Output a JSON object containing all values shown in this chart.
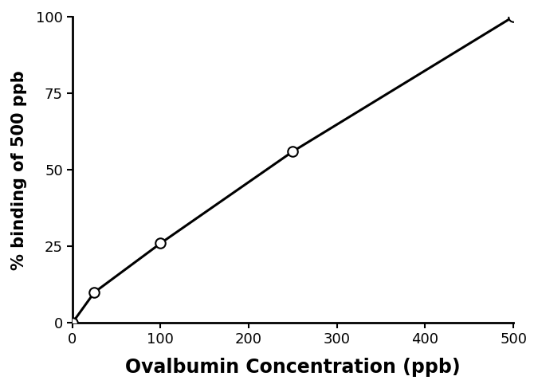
{
  "x": [
    0,
    25,
    100,
    250,
    500
  ],
  "y": [
    0,
    10,
    26,
    56,
    100
  ],
  "xlabel": "Ovalbumin Concentration (ppb)",
  "ylabel": "% binding of 500 ppb",
  "xlim": [
    0,
    500
  ],
  "ylim": [
    0,
    100
  ],
  "xticks": [
    0,
    100,
    200,
    300,
    400,
    500
  ],
  "yticks": [
    0,
    25,
    50,
    75,
    100
  ],
  "line_color": "#000000",
  "marker_facecolor": "#ffffff",
  "marker_edgecolor": "#000000",
  "marker_size": 9,
  "marker_linewidth": 1.5,
  "line_width": 2.2,
  "xlabel_fontsize": 17,
  "ylabel_fontsize": 15,
  "tick_fontsize": 13,
  "xlabel_fontweight": "bold",
  "ylabel_fontweight": "bold",
  "background_color": "#ffffff"
}
